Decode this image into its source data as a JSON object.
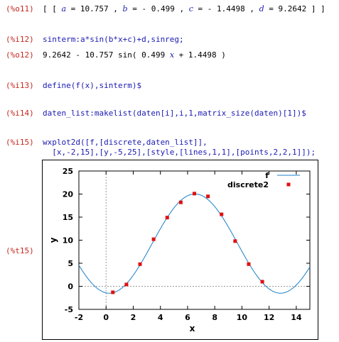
{
  "cells": {
    "o11": {
      "tag": "(%o11)",
      "parts": [
        "[ [ ",
        "a",
        " = 10.757 , ",
        "b",
        " = - 0.499 , ",
        "c",
        " = - 1.4498 , ",
        "d",
        " = 9.2642 ] ]"
      ]
    },
    "i12": {
      "tag": "(%i12)",
      "text": "sinterm:a*sin(b*x+c)+d,sinreg;"
    },
    "o12": {
      "tag": "(%o12)",
      "parts": [
        "9.2642 - 10.757 sin( 0.499 ",
        "x",
        " + 1.4498 )"
      ]
    },
    "i13": {
      "tag": "(%i13)",
      "text": "define(f(x),sinterm)$"
    },
    "i14": {
      "tag": "(%i14)",
      "text": "daten_list:makelist(daten[i],i,1,matrix_size(daten)[1])$"
    },
    "i15": {
      "tag": "(%i15)",
      "line1": "wxplot2d([f,[discrete,daten_list]],",
      "line2": "  [x,-2,15],[y,-5,25],[style,[lines,1,1],[points,2,2,1]]);"
    },
    "t15": {
      "tag": "(%t15)"
    }
  },
  "chart_data": {
    "type": "line",
    "xlabel": "x",
    "ylabel": "y",
    "xlim": [
      -2,
      15
    ],
    "ylim": [
      -5,
      25
    ],
    "xticks": [
      "-2",
      "0",
      "2",
      "4",
      "6",
      "8",
      "10",
      "12",
      "14"
    ],
    "yticks": [
      "-5",
      "0",
      "5",
      "10",
      "15",
      "20",
      "25"
    ],
    "series": [
      {
        "name": "f",
        "kind": "function",
        "expression": "9.2642 - 10.757 sin( 0.499 x + 1.4498 )",
        "color": "#1a7fc8"
      },
      {
        "name": "discrete2",
        "kind": "points",
        "color": "#e01010",
        "x": [
          0.5,
          1.5,
          2.5,
          3.5,
          4.5,
          5.5,
          6.5,
          7.5,
          8.5,
          9.5,
          10.5,
          11.5
        ],
        "y": [
          -1.3,
          0.4,
          4.8,
          10.2,
          14.9,
          18.2,
          20.1,
          19.5,
          15.6,
          9.8,
          4.8,
          1.0
        ]
      }
    ],
    "grid": "zero-axes-dotted",
    "legend": "top-right"
  }
}
